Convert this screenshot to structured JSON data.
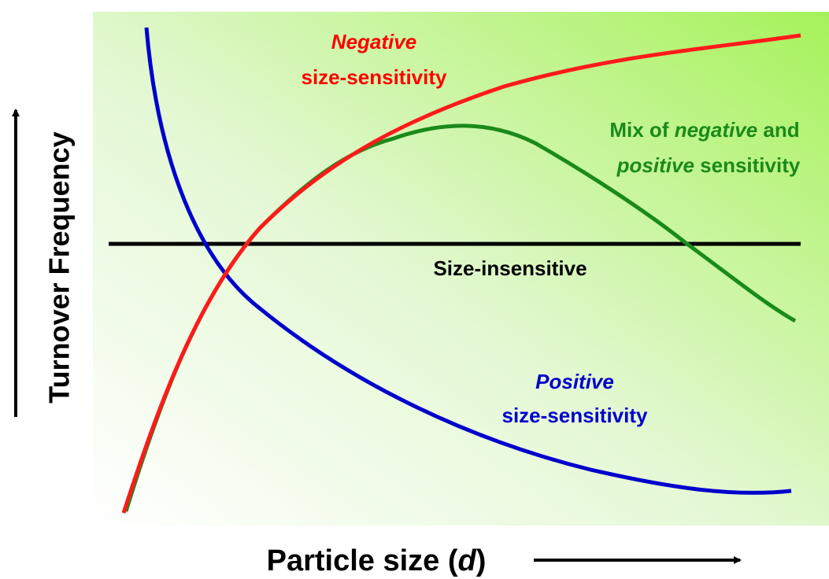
{
  "y_axis_label": "Turnover Frequency",
  "x_axis_label": {
    "text": "Particle size (",
    "variable": "d",
    "close": ")"
  },
  "negative": {
    "emphasis": "Negative",
    "line2": "size-sensitivity"
  },
  "mixed": {
    "line1_start": "Mix of ",
    "line1_emphasis": "negative",
    "line1_end": " and",
    "line2_emphasis": "positive",
    "line2_end": " sensitivity"
  },
  "insensitive": {
    "label": "Size-insensitive"
  },
  "positive": {
    "emphasis": "Positive",
    "line2": "size-sensitivity"
  }
}
